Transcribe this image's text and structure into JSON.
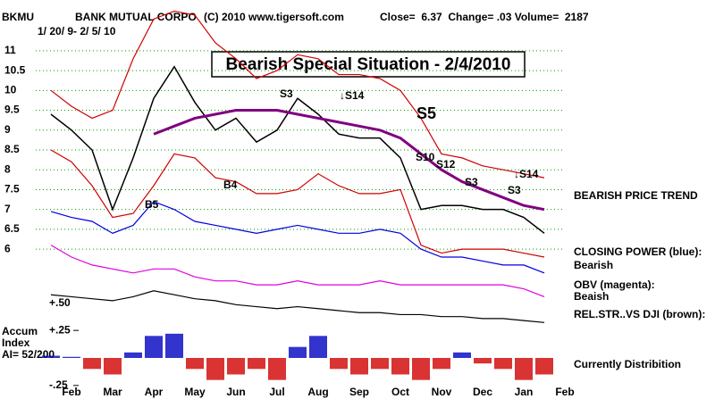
{
  "chart_data": {
    "type": "line",
    "header": {
      "symbol": "BKMU",
      "company": "BANK MUTUAL CORPO",
      "source": "(C) 2010 www.tigersoft.com",
      "quote": "Close=  6.37  Change= .03 Volume=  2187",
      "date_range": "1/ 20/ 9- 2/ 5/ 10"
    },
    "title": "Bearish Special Situation - 2/4/2010",
    "categories": [
      null,
      "Feb",
      null,
      "Mar",
      null,
      "Apr",
      null,
      "May",
      null,
      "Jun",
      null,
      "Jul",
      null,
      "Aug",
      null,
      "Sep",
      null,
      "Oct",
      null,
      "Nov",
      null,
      "Dec",
      null,
      "Jan",
      null,
      "Feb"
    ],
    "ylim": [
      4.0,
      12.1
    ],
    "yticks": [
      6,
      6.5,
      7,
      7.5,
      8,
      8.5,
      9,
      9.5,
      10,
      10.5,
      11
    ],
    "grid": true,
    "series": [
      {
        "name": "Price",
        "color": "#000000",
        "values": [
          9.4,
          9.0,
          8.5,
          7.0,
          8.3,
          9.8,
          10.6,
          9.7,
          9.0,
          9.3,
          8.7,
          9.0,
          9.8,
          9.4,
          8.9,
          8.8,
          8.8,
          8.3,
          7.0,
          7.1,
          7.1,
          7.0,
          7.0,
          6.8,
          6.4,
          null
        ]
      },
      {
        "name": "Upper Band",
        "color": "#d00000",
        "values": [
          10.0,
          9.6,
          9.3,
          9.5,
          10.8,
          11.8,
          12.0,
          11.9,
          11.2,
          10.8,
          10.3,
          10.5,
          10.9,
          10.8,
          10.4,
          10.4,
          10.3,
          10.0,
          9.3,
          8.4,
          8.3,
          8.1,
          8.0,
          7.9,
          7.8,
          null
        ]
      },
      {
        "name": "Lower Band",
        "color": "#d00000",
        "values": [
          8.5,
          8.2,
          7.6,
          6.8,
          6.9,
          7.6,
          8.4,
          8.3,
          7.8,
          7.7,
          7.4,
          7.4,
          7.5,
          7.9,
          7.6,
          7.4,
          7.4,
          7.5,
          6.1,
          5.9,
          6.0,
          6.0,
          6.0,
          5.9,
          5.8,
          null
        ]
      },
      {
        "name": "Moving Average",
        "color": "#800080",
        "values": [
          null,
          null,
          null,
          null,
          null,
          8.9,
          9.1,
          9.3,
          9.4,
          9.5,
          9.5,
          9.5,
          9.4,
          9.3,
          9.2,
          9.1,
          9.0,
          8.8,
          8.4,
          8.0,
          7.7,
          7.5,
          7.3,
          7.1,
          7.0,
          null
        ]
      },
      {
        "name": "Closing Power",
        "color": "#0000e0",
        "values": [
          6.95,
          6.8,
          6.7,
          6.4,
          6.6,
          7.2,
          7.0,
          6.7,
          6.6,
          6.5,
          6.4,
          6.5,
          6.6,
          6.5,
          6.4,
          6.4,
          6.5,
          6.4,
          6.0,
          5.8,
          5.8,
          5.7,
          5.6,
          5.6,
          5.4,
          null
        ]
      },
      {
        "name": "OBV",
        "color": "#e000e0",
        "values": [
          6.1,
          5.8,
          5.6,
          5.5,
          5.4,
          5.5,
          5.5,
          5.3,
          5.2,
          5.2,
          5.1,
          5.1,
          5.2,
          5.1,
          5.1,
          5.1,
          5.2,
          5.1,
          5.1,
          5.1,
          5.1,
          5.1,
          5.1,
          5.0,
          4.8,
          null
        ]
      },
      {
        "name": "Relative Strength",
        "color": "#000000",
        "values": [
          4.85,
          4.8,
          4.75,
          4.7,
          4.8,
          4.95,
          4.85,
          4.75,
          4.7,
          4.6,
          4.55,
          4.5,
          4.55,
          4.5,
          4.45,
          4.4,
          4.4,
          4.35,
          4.35,
          4.3,
          4.3,
          4.25,
          4.25,
          4.2,
          4.15,
          null
        ]
      }
    ],
    "signals": [
      "S3",
      "↓S14",
      "B4",
      "B5",
      "S5",
      "S10",
      "S12",
      "S3",
      "S3",
      "↓S14"
    ],
    "rel_str_label": "+.50",
    "side_labels": [
      "BEARISH PRICE TREND",
      "CLOSING POWER (blue):",
      "Bearish",
      "OBV (magenta):",
      "Beaish",
      "REL.STR..VS DJI (brown):",
      "Currently Distribition"
    ],
    "accum": {
      "labels": [
        "Accum",
        "Index",
        "AI= 52/200"
      ],
      "ylim": [
        -0.3,
        0.3
      ],
      "yticks": [
        {
          "value": 0.25,
          "label": "+.25"
        },
        {
          "value": -0.25,
          "label": "-.25"
        }
      ],
      "positive_color": "#0000c0",
      "negative_color": "#d00000",
      "values": [
        0.02,
        0.01,
        -0.1,
        -0.15,
        0.05,
        0.2,
        0.22,
        -0.1,
        -0.2,
        -0.15,
        -0.1,
        -0.2,
        0.1,
        0.2,
        -0.1,
        -0.15,
        -0.1,
        -0.15,
        -0.2,
        -0.1,
        0.05,
        -0.05,
        -0.1,
        -0.2,
        -0.15,
        null
      ]
    }
  }
}
